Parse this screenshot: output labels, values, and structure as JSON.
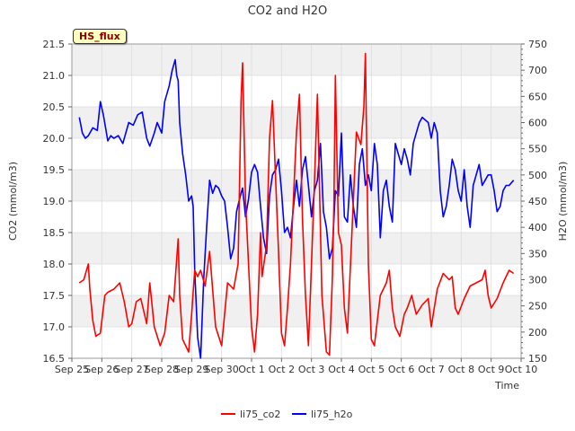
{
  "chart_data": {
    "type": "line",
    "title": "CO2 and H2O",
    "xlabel": "Time",
    "ylabel": "CO2 (mmol/m3)",
    "ylabel_right": "H2O (mmol/m3)",
    "badge": "HS_flux",
    "x_ticks": [
      "Sep 25",
      "Sep 26",
      "Sep 27",
      "Sep 28",
      "Sep 29",
      "Sep 30",
      "Oct 1",
      "Oct 2",
      "Oct 3",
      "Oct 4",
      "Oct 5",
      "Oct 6",
      "Oct 7",
      "Oct 8",
      "Oct 9",
      "Oct 10"
    ],
    "xlim_days": [
      0,
      15
    ],
    "ylim": [
      16.5,
      21.5
    ],
    "y_ticks": [
      "16.5",
      "17.0",
      "17.5",
      "18.0",
      "18.5",
      "19.0",
      "19.5",
      "20.0",
      "20.5",
      "21.0",
      "21.5"
    ],
    "ylim_right": [
      150,
      750
    ],
    "y_ticks_right": [
      "150",
      "200",
      "250",
      "300",
      "350",
      "400",
      "450",
      "500",
      "550",
      "600",
      "650",
      "700",
      "750"
    ],
    "legend": [
      "li75_co2",
      "li75_h2o"
    ],
    "colors": {
      "co2": "#ff0000",
      "h2o": "#0000ff",
      "band": "#f0f0f0",
      "grid": "#dcdcdc"
    },
    "series": [
      {
        "name": "li75_co2",
        "axis": "left",
        "x": [
          0.25,
          0.4,
          0.55,
          0.6,
          0.7,
          0.8,
          0.95,
          1.1,
          1.2,
          1.4,
          1.6,
          1.75,
          1.9,
          2.0,
          2.15,
          2.3,
          2.5,
          2.6,
          2.75,
          2.95,
          3.1,
          3.25,
          3.4,
          3.55,
          3.6,
          3.7,
          3.9,
          4.0,
          4.1,
          4.2,
          4.3,
          4.45,
          4.6,
          4.8,
          5.0,
          5.2,
          5.4,
          5.55,
          5.65,
          5.7,
          5.8,
          5.95,
          6.0,
          6.05,
          6.1,
          6.2,
          6.3,
          6.35,
          6.5,
          6.6,
          6.7,
          6.9,
          7.0,
          7.1,
          7.2,
          7.3,
          7.5,
          7.6,
          7.7,
          7.8,
          7.9,
          8.0,
          8.1,
          8.2,
          8.35,
          8.5,
          8.6,
          8.7,
          8.75,
          8.8,
          8.9,
          9.0,
          9.1,
          9.2,
          9.35,
          9.5,
          9.65,
          9.75,
          9.8,
          9.9,
          10.0,
          10.1,
          10.2,
          10.3,
          10.4,
          10.5,
          10.6,
          10.7,
          10.8,
          10.95,
          11.1,
          11.2,
          11.35,
          11.5,
          11.7,
          11.9,
          12.0,
          12.2,
          12.4,
          12.5,
          12.6,
          12.7,
          12.8,
          12.9,
          13.1,
          13.3,
          13.5,
          13.7,
          13.8,
          13.9,
          14.0,
          14.2,
          14.4,
          14.6,
          14.75
        ],
        "values": [
          17.7,
          17.75,
          18.0,
          17.6,
          17.1,
          16.85,
          16.9,
          17.5,
          17.55,
          17.6,
          17.7,
          17.4,
          17.0,
          17.05,
          17.4,
          17.45,
          17.05,
          17.7,
          17.0,
          16.7,
          16.9,
          17.5,
          17.4,
          18.4,
          17.5,
          16.8,
          16.6,
          17.2,
          17.9,
          17.8,
          17.9,
          17.65,
          18.2,
          17.0,
          16.7,
          17.7,
          17.6,
          18.0,
          20.6,
          21.2,
          19.0,
          17.5,
          17.0,
          16.8,
          16.6,
          17.2,
          18.5,
          17.8,
          18.3,
          20.0,
          20.6,
          18.2,
          16.9,
          16.7,
          17.3,
          18.0,
          20.1,
          20.7,
          18.7,
          17.5,
          16.7,
          18.0,
          19.3,
          20.7,
          17.5,
          16.6,
          16.55,
          17.8,
          19.0,
          21.0,
          18.5,
          18.3,
          17.3,
          16.9,
          18.5,
          20.1,
          19.9,
          20.5,
          21.35,
          18.0,
          16.8,
          16.7,
          17.1,
          17.5,
          17.6,
          17.7,
          17.9,
          17.3,
          17.0,
          16.85,
          17.2,
          17.3,
          17.5,
          17.2,
          17.35,
          17.45,
          17.0,
          17.6,
          17.85,
          17.8,
          17.75,
          17.8,
          17.3,
          17.2,
          17.45,
          17.65,
          17.7,
          17.75,
          17.9,
          17.5,
          17.3,
          17.45,
          17.7,
          17.9,
          17.85
        ]
      },
      {
        "name": "li75_h2o",
        "axis": "right",
        "x": [
          0.25,
          0.35,
          0.45,
          0.55,
          0.7,
          0.85,
          0.95,
          1.05,
          1.2,
          1.3,
          1.4,
          1.55,
          1.7,
          1.9,
          2.05,
          2.2,
          2.35,
          2.5,
          2.6,
          2.75,
          2.85,
          3.0,
          3.1,
          3.25,
          3.35,
          3.45,
          3.5,
          3.55,
          3.6,
          3.7,
          3.8,
          3.9,
          4.0,
          4.05,
          4.1,
          4.2,
          4.3,
          4.4,
          4.5,
          4.6,
          4.7,
          4.8,
          4.9,
          5.0,
          5.1,
          5.2,
          5.3,
          5.4,
          5.5,
          5.6,
          5.7,
          5.8,
          5.9,
          6.0,
          6.1,
          6.2,
          6.3,
          6.4,
          6.5,
          6.6,
          6.7,
          6.8,
          6.9,
          7.0,
          7.1,
          7.2,
          7.3,
          7.4,
          7.5,
          7.6,
          7.7,
          7.8,
          7.9,
          8.0,
          8.1,
          8.2,
          8.3,
          8.4,
          8.5,
          8.6,
          8.7,
          8.8,
          8.9,
          9.0,
          9.1,
          9.2,
          9.3,
          9.4,
          9.5,
          9.6,
          9.7,
          9.8,
          9.9,
          10.0,
          10.1,
          10.2,
          10.3,
          10.4,
          10.5,
          10.6,
          10.7,
          10.8,
          10.9,
          11.0,
          11.1,
          11.2,
          11.3,
          11.4,
          11.5,
          11.6,
          11.7,
          11.8,
          11.9,
          12.0,
          12.1,
          12.2,
          12.3,
          12.4,
          12.5,
          12.6,
          12.7,
          12.8,
          12.9,
          13.0,
          13.1,
          13.2,
          13.3,
          13.4,
          13.5,
          13.6,
          13.7,
          13.8,
          13.9,
          14.0,
          14.1,
          14.2,
          14.3,
          14.4,
          14.5,
          14.6,
          14.75
        ],
        "values": [
          610,
          580,
          570,
          575,
          590,
          585,
          640,
          615,
          565,
          575,
          570,
          575,
          560,
          600,
          595,
          615,
          620,
          570,
          555,
          580,
          600,
          580,
          640,
          670,
          700,
          720,
          690,
          680,
          600,
          540,
          500,
          450,
          460,
          440,
          320,
          190,
          150,
          300,
          400,
          490,
          465,
          480,
          475,
          460,
          450,
          400,
          340,
          360,
          430,
          455,
          475,
          420,
          455,
          505,
          520,
          505,
          440,
          380,
          350,
          460,
          500,
          510,
          530,
          470,
          390,
          400,
          380,
          440,
          490,
          440,
          510,
          535,
          480,
          420,
          470,
          490,
          560,
          430,
          400,
          340,
          360,
          470,
          460,
          580,
          420,
          410,
          500,
          440,
          400,
          520,
          550,
          480,
          500,
          470,
          560,
          520,
          380,
          470,
          490,
          440,
          410,
          560,
          540,
          520,
          550,
          530,
          500,
          560,
          580,
          600,
          610,
          605,
          600,
          570,
          600,
          580,
          470,
          420,
          440,
          480,
          530,
          510,
          470,
          450,
          510,
          440,
          400,
          480,
          500,
          520,
          480,
          490,
          500,
          500,
          470,
          430,
          440,
          470,
          480,
          480,
          490
        ]
      }
    ]
  }
}
